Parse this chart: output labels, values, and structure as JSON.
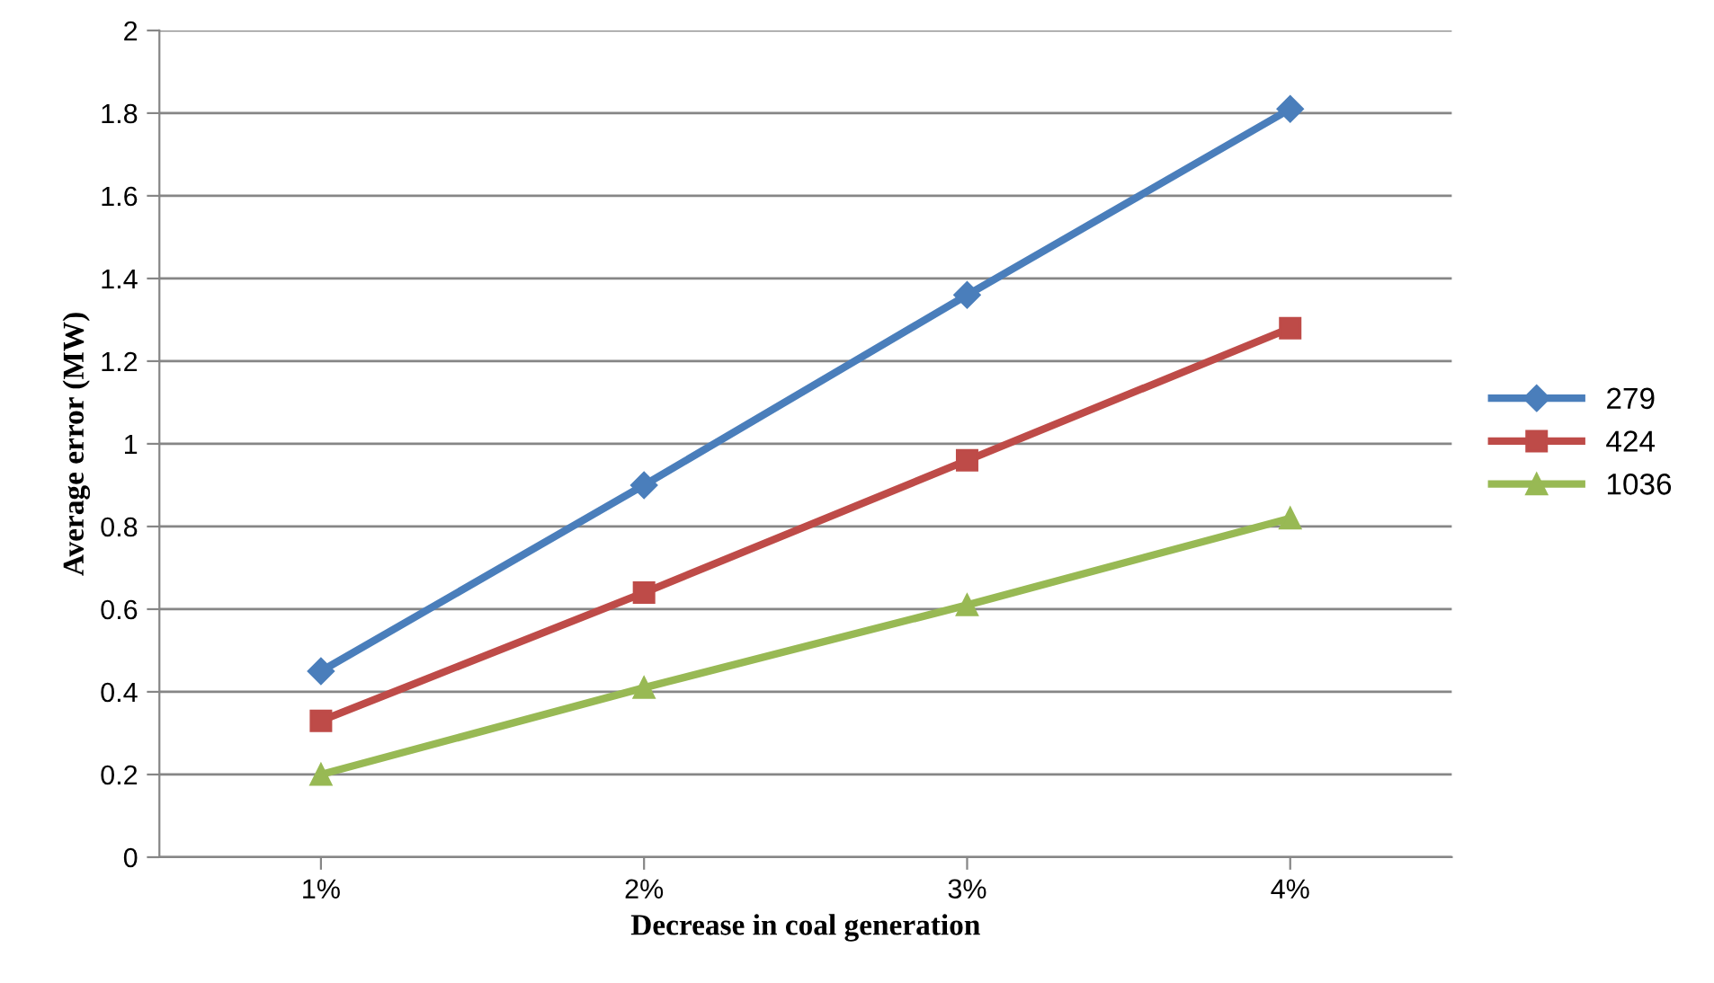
{
  "chart_data": {
    "type": "line",
    "xlabel": "Decrease in coal generation",
    "ylabel": "Average error (MW)",
    "categories": [
      "1%",
      "2%",
      "3%",
      "4%"
    ],
    "series": [
      {
        "name": "279",
        "color": "#4a7ebb",
        "marker": "diamond",
        "values": [
          0.45,
          0.9,
          1.36,
          1.81
        ]
      },
      {
        "name": "424",
        "color": "#be4b48",
        "marker": "square",
        "values": [
          0.33,
          0.64,
          0.96,
          1.28
        ]
      },
      {
        "name": "1036",
        "color": "#98b954",
        "marker": "triangle",
        "values": [
          0.2,
          0.41,
          0.61,
          0.82
        ]
      }
    ],
    "ylim": [
      0,
      2
    ],
    "yticks": [
      0,
      0.2,
      0.4,
      0.6,
      0.8,
      1,
      1.2,
      1.4,
      1.6,
      1.8,
      2
    ],
    "grid": "y",
    "legend": "right",
    "line_style": "solid"
  }
}
